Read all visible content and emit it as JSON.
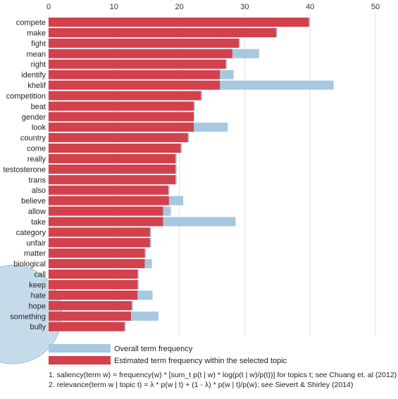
{
  "chart_data": {
    "type": "bar",
    "orientation": "horizontal",
    "stacking": "overlay",
    "x_ticks": [
      0,
      10,
      20,
      30,
      40,
      50
    ],
    "xlim": [
      0,
      50
    ],
    "grid": true,
    "categories": [
      "compete",
      "make",
      "fight",
      "mean",
      "right",
      "identify",
      "khelif",
      "competition",
      "beat",
      "gender",
      "look",
      "country",
      "come",
      "really",
      "testosterone",
      "trans",
      "also",
      "believe",
      "allow",
      "take",
      "category",
      "unfair",
      "matter",
      "biological",
      "call",
      "keep",
      "hate",
      "hope",
      "something",
      "bully"
    ],
    "series": [
      {
        "name": "Overall term frequency",
        "color": "#a6c8e0",
        "values": [
          40,
          35,
          29.3,
          32.2,
          27.3,
          28.3,
          43.6,
          23.5,
          22.4,
          22.3,
          27.4,
          21.5,
          20.4,
          19.6,
          19.6,
          19.6,
          18.5,
          20.6,
          18.7,
          28.6,
          15.7,
          15.7,
          14.9,
          15.8,
          13.8,
          13.8,
          15.9,
          12.9,
          16.8,
          11.8
        ]
      },
      {
        "name": "Estimated term frequency within the selected topic",
        "color": "#d2414c",
        "values": [
          39.8,
          34.8,
          29.1,
          28.1,
          27.1,
          26.2,
          26.2,
          23.3,
          22.2,
          22.2,
          22.2,
          21.3,
          20.2,
          19.4,
          19.4,
          19.4,
          18.3,
          18.4,
          17.5,
          17.5,
          15.5,
          15.5,
          14.7,
          14.7,
          13.6,
          13.6,
          13.6,
          12.7,
          12.6,
          11.6
        ]
      }
    ]
  },
  "legend": {
    "overall_label": "Overall term frequency",
    "estimated_label": "Estimated term frequency within the selected topic",
    "overall_color": "#a6c8e0",
    "estimated_color": "#d2414c"
  },
  "notes": {
    "line1": "1. saliency(term w) = frequency(w) * [sum_t p(t | w) * log(p(t | w)/p(t))] for topics t; see Chuang et. al (2012)",
    "line2": "2. relevance(term w | topic t) = λ * p(w | t) + (1 - λ) * p(w | t)/p(w); see Sievert & Shirley (2014)"
  },
  "decor": {
    "circle_color": "#c6dbea"
  }
}
